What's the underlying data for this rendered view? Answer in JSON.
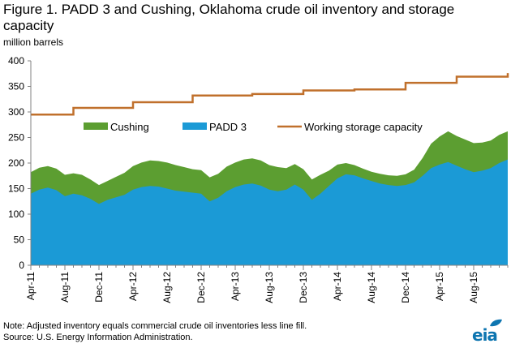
{
  "figure": {
    "title": "Figure 1. PADD 3 and Cushing, Oklahoma crude oil inventory and storage capacity",
    "unit_label": "million barrels",
    "note": "Note: Adjusted inventory  equals commercial crude oil inventories  less line fill.",
    "source": "Source: U.S. Energy Information  Administration.",
    "logo": "eia",
    "logo_icon": "eia-leaf-icon"
  },
  "colors": {
    "padd3": "#1b9ad6",
    "cushing": "#5c9e31",
    "capacity": "#c0702c",
    "axis": "#808080",
    "logo": "#0d75b0"
  },
  "chart_data": {
    "type": "area",
    "title": "Figure 1. PADD 3 and Cushing, Oklahoma crude oil inventory and storage capacity",
    "ylabel": "million barrels",
    "xlabel": "",
    "ylim": [
      0,
      400
    ],
    "yticks": [
      0,
      50,
      100,
      150,
      200,
      250,
      300,
      350,
      400
    ],
    "grid": false,
    "legend_position": "top-center",
    "x_start": "2011-04",
    "x_end": "2015-12",
    "x_tick_labels": [
      "Apr-11",
      "Aug-11",
      "Dec-11",
      "Apr-12",
      "Aug-12",
      "Dec-12",
      "Apr-13",
      "Aug-13",
      "Dec-13",
      "Apr-14",
      "Aug-14",
      "Dec-14",
      "Apr-15",
      "Aug-15"
    ],
    "x": [
      "2011-04",
      "2011-05",
      "2011-06",
      "2011-07",
      "2011-08",
      "2011-09",
      "2011-10",
      "2011-11",
      "2011-12",
      "2012-01",
      "2012-02",
      "2012-03",
      "2012-04",
      "2012-05",
      "2012-06",
      "2012-07",
      "2012-08",
      "2012-09",
      "2012-10",
      "2012-11",
      "2012-12",
      "2013-01",
      "2013-02",
      "2013-03",
      "2013-04",
      "2013-05",
      "2013-06",
      "2013-07",
      "2013-08",
      "2013-09",
      "2013-10",
      "2013-11",
      "2013-12",
      "2014-01",
      "2014-02",
      "2014-03",
      "2014-04",
      "2014-05",
      "2014-06",
      "2014-07",
      "2014-08",
      "2014-09",
      "2014-10",
      "2014-11",
      "2014-12",
      "2015-01",
      "2015-02",
      "2015-03",
      "2015-04",
      "2015-05",
      "2015-06",
      "2015-07",
      "2015-08",
      "2015-09",
      "2015-10",
      "2015-11",
      "2015-12"
    ],
    "series": [
      {
        "name": "PADD 3",
        "stack": true,
        "values": [
          140,
          148,
          152,
          147,
          135,
          140,
          137,
          130,
          120,
          128,
          133,
          138,
          148,
          153,
          155,
          154,
          150,
          146,
          144,
          142,
          140,
          125,
          132,
          145,
          153,
          158,
          160,
          156,
          148,
          145,
          148,
          158,
          148,
          128,
          140,
          155,
          170,
          178,
          176,
          170,
          165,
          160,
          157,
          155,
          157,
          162,
          175,
          190,
          197,
          202,
          195,
          188,
          182,
          185,
          190,
          200,
          207
        ]
      },
      {
        "name": "Cushing",
        "stack": true,
        "values": [
          42,
          43,
          42,
          42,
          42,
          40,
          40,
          38,
          37,
          37,
          40,
          43,
          46,
          48,
          50,
          50,
          51,
          50,
          48,
          46,
          46,
          47,
          47,
          48,
          48,
          49,
          49,
          49,
          48,
          47,
          42,
          40,
          40,
          40,
          37,
          30,
          27,
          22,
          20,
          19,
          18,
          19,
          19,
          20,
          21,
          25,
          35,
          48,
          55,
          60,
          58,
          58,
          57,
          55,
          54,
          55,
          55
        ]
      },
      {
        "name": "Working storage capacity",
        "type": "line",
        "values": [
          295,
          295,
          295,
          295,
          295,
          308,
          308,
          308,
          308,
          308,
          308,
          308,
          319,
          319,
          319,
          319,
          319,
          319,
          319,
          332,
          332,
          332,
          332,
          332,
          332,
          332,
          335,
          335,
          335,
          335,
          335,
          335,
          342,
          342,
          342,
          342,
          342,
          342,
          344,
          344,
          344,
          344,
          344,
          344,
          357,
          357,
          357,
          357,
          357,
          357,
          369,
          369,
          369,
          369,
          369,
          369,
          376
        ]
      }
    ]
  }
}
